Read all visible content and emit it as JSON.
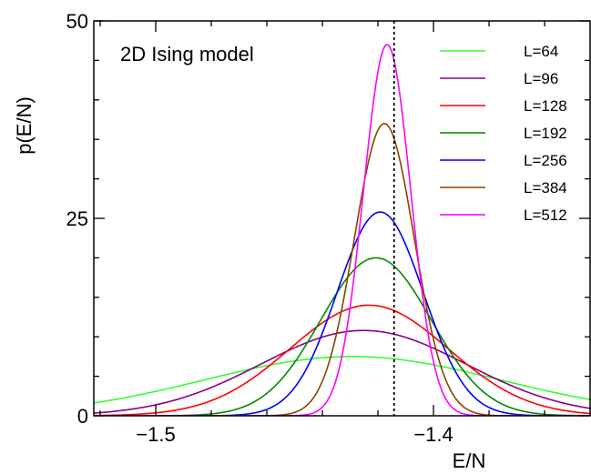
{
  "chart_data": {
    "type": "line",
    "annotation": "2D Ising model",
    "xlabel": "E/N",
    "ylabel": "p(E/N)",
    "xlim": [
      -1.5223,
      -1.3433
    ],
    "ylim": [
      0,
      50
    ],
    "x_ticks": [
      -1.5,
      -1.4
    ],
    "x_tick_labels": [
      "−1.5",
      "−1.4"
    ],
    "y_ticks": [
      0,
      25,
      50
    ],
    "y_tick_labels": [
      "0",
      "25",
      "50"
    ],
    "grid": false,
    "legend_position": "top-right",
    "reference_line": {
      "x": -1.4142,
      "style": "dashed",
      "color": "#000000"
    },
    "series": [
      {
        "name": "L=64",
        "color": "#33ff33",
        "peak_x": -1.4292,
        "peak_y": 7.5,
        "width": 0.0532
      },
      {
        "name": "L=96",
        "color": "#880088",
        "peak_x": -1.4252,
        "peak_y": 10.8,
        "width": 0.0369
      },
      {
        "name": "L=128",
        "color": "#ff0000",
        "peak_x": -1.4232,
        "peak_y": 14.0,
        "width": 0.0285
      },
      {
        "name": "L=192",
        "color": "#008800",
        "peak_x": -1.4207,
        "peak_y": 20.0,
        "width": 0.0199
      },
      {
        "name": "L=256",
        "color": "#0000ff",
        "peak_x": -1.4192,
        "peak_y": 25.8,
        "width": 0.0155
      },
      {
        "name": "L=384",
        "color": "#884400",
        "peak_x": -1.4177,
        "peak_y": 37.0,
        "width": 0.0108
      },
      {
        "name": "L=512",
        "color": "#ff00ff",
        "peak_x": -1.4167,
        "peak_y": 47.0,
        "width": 0.0085
      }
    ]
  }
}
